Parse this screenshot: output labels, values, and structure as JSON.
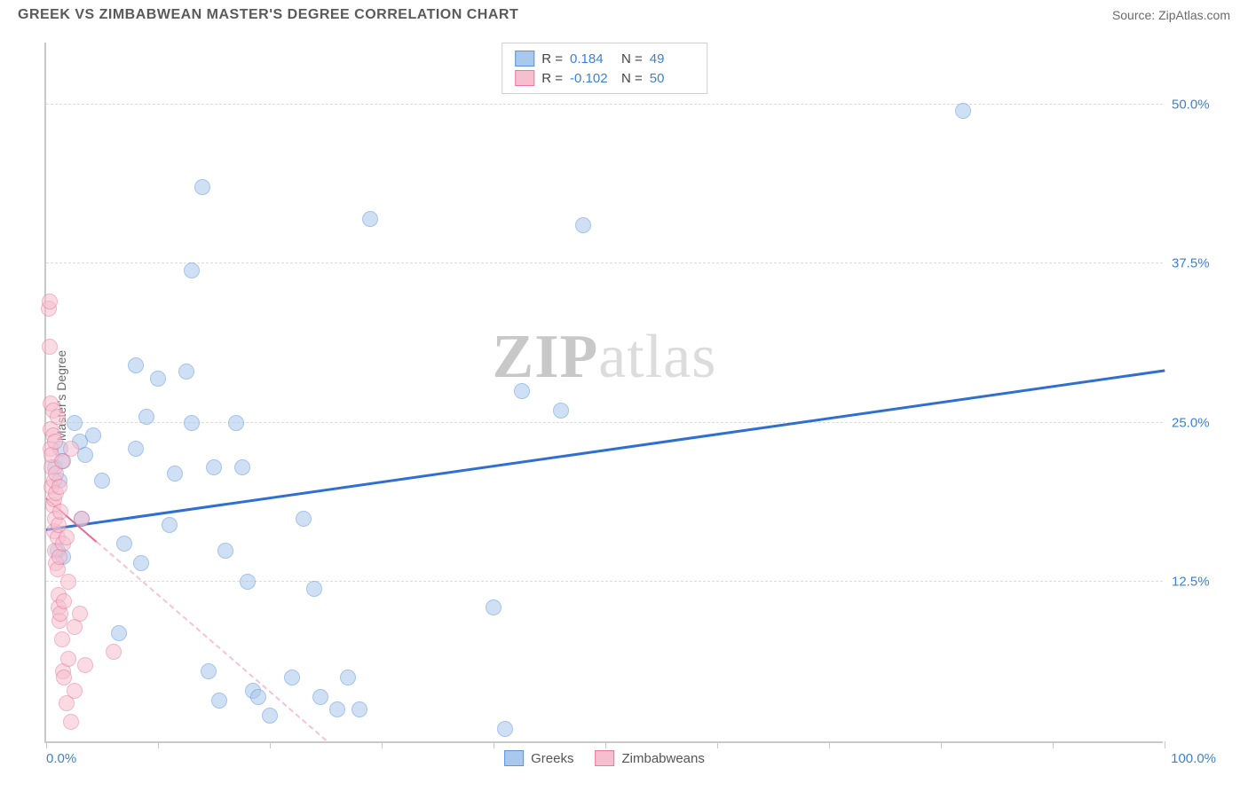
{
  "header": {
    "title": "GREEK VS ZIMBABWEAN MASTER'S DEGREE CORRELATION CHART",
    "source_label": "Source: ZipAtlas.com"
  },
  "watermark": {
    "bold": "ZIP",
    "light": "atlas"
  },
  "chart": {
    "type": "scatter",
    "background_color": "#ffffff",
    "grid_color": "#dcdcdc",
    "axis_color": "#c9c9c9",
    "tick_label_color": "#3b82d6",
    "tick_fontsize": 15,
    "yaxis_label": "Master's Degree",
    "yaxis_label_color": "#6a6a6a",
    "yaxis_label_fontsize": 14,
    "xlim": [
      0,
      100
    ],
    "ylim": [
      0,
      55
    ],
    "xticks": [
      0,
      10,
      20,
      30,
      40,
      50,
      60,
      70,
      80,
      90,
      100
    ],
    "xlabel_min": "0.0%",
    "xlabel_max": "100.0%",
    "yticks": [
      {
        "v": 12.5,
        "label": "12.5%"
      },
      {
        "v": 25.0,
        "label": "25.0%"
      },
      {
        "v": 37.5,
        "label": "37.5%"
      },
      {
        "v": 50.0,
        "label": "50.0%"
      }
    ],
    "marker_radius": 9,
    "marker_opacity": 0.55,
    "marker_border_width": 1,
    "series": [
      {
        "name": "Greeks",
        "color_fill": "#a8c8ee",
        "color_border": "#5c94d6",
        "trend": {
          "x1": 0,
          "y1": 16.5,
          "x2": 100,
          "y2": 29.0,
          "color": "#2f6fd0",
          "width": 3,
          "dashed": false
        },
        "stats": {
          "R": "0.184",
          "N": "49"
        },
        "points": [
          [
            0.8,
            21.5
          ],
          [
            1.0,
            15.0
          ],
          [
            1.2,
            20.5
          ],
          [
            1.3,
            23.0
          ],
          [
            1.5,
            22.0
          ],
          [
            1.5,
            14.5
          ],
          [
            2.5,
            25.0
          ],
          [
            3.0,
            23.5
          ],
          [
            3.2,
            17.5
          ],
          [
            3.5,
            22.5
          ],
          [
            4.2,
            24.0
          ],
          [
            5.0,
            20.5
          ],
          [
            6.5,
            8.5
          ],
          [
            7.0,
            15.5
          ],
          [
            8.0,
            29.5
          ],
          [
            8.0,
            23.0
          ],
          [
            8.5,
            14.0
          ],
          [
            9.0,
            25.5
          ],
          [
            10.0,
            28.5
          ],
          [
            11.0,
            17.0
          ],
          [
            11.5,
            21.0
          ],
          [
            12.5,
            29.0
          ],
          [
            13.0,
            25.0
          ],
          [
            13.0,
            37.0
          ],
          [
            14.0,
            43.5
          ],
          [
            14.5,
            5.5
          ],
          [
            15.0,
            21.5
          ],
          [
            15.5,
            3.2
          ],
          [
            16.0,
            15.0
          ],
          [
            17.0,
            25.0
          ],
          [
            17.5,
            21.5
          ],
          [
            18.0,
            12.5
          ],
          [
            18.5,
            4.0
          ],
          [
            19.0,
            3.5
          ],
          [
            20.0,
            2.0
          ],
          [
            22.0,
            5.0
          ],
          [
            23.0,
            17.5
          ],
          [
            24.0,
            12.0
          ],
          [
            24.5,
            3.5
          ],
          [
            26.0,
            2.5
          ],
          [
            27.0,
            5.0
          ],
          [
            28.0,
            2.5
          ],
          [
            29.0,
            41.0
          ],
          [
            40.0,
            10.5
          ],
          [
            41.0,
            1.0
          ],
          [
            42.5,
            27.5
          ],
          [
            46.0,
            26.0
          ],
          [
            48.0,
            40.5
          ],
          [
            82.0,
            49.5
          ]
        ]
      },
      {
        "name": "Zimbabweans",
        "color_fill": "#f6bfcf",
        "color_border": "#e77a9b",
        "trend": {
          "x1": 0,
          "y1": 19.0,
          "x2": 25,
          "y2": 0,
          "color": "#e86a91",
          "width": 2,
          "dashed": true,
          "solid_until_x": 4.5
        },
        "stats": {
          "R": "-0.102",
          "N": "50"
        },
        "points": [
          [
            0.2,
            34.0
          ],
          [
            0.3,
            34.5
          ],
          [
            0.3,
            31.0
          ],
          [
            0.4,
            26.5
          ],
          [
            0.4,
            24.5
          ],
          [
            0.4,
            23.0
          ],
          [
            0.5,
            21.5
          ],
          [
            0.5,
            20.0
          ],
          [
            0.5,
            22.5
          ],
          [
            0.6,
            24.0
          ],
          [
            0.6,
            18.5
          ],
          [
            0.6,
            26.0
          ],
          [
            0.7,
            20.5
          ],
          [
            0.7,
            16.5
          ],
          [
            0.7,
            19.0
          ],
          [
            0.8,
            17.5
          ],
          [
            0.8,
            15.0
          ],
          [
            0.8,
            23.5
          ],
          [
            0.9,
            14.0
          ],
          [
            0.9,
            19.5
          ],
          [
            0.9,
            21.0
          ],
          [
            1.0,
            13.5
          ],
          [
            1.0,
            16.0
          ],
          [
            1.0,
            25.5
          ],
          [
            1.1,
            11.5
          ],
          [
            1.1,
            10.5
          ],
          [
            1.1,
            17.0
          ],
          [
            1.2,
            14.5
          ],
          [
            1.2,
            9.5
          ],
          [
            1.2,
            20.0
          ],
          [
            1.3,
            18.0
          ],
          [
            1.3,
            10.0
          ],
          [
            1.4,
            22.0
          ],
          [
            1.4,
            8.0
          ],
          [
            1.5,
            15.5
          ],
          [
            1.5,
            5.5
          ],
          [
            1.6,
            5.0
          ],
          [
            1.6,
            11.0
          ],
          [
            1.8,
            16.0
          ],
          [
            1.8,
            3.0
          ],
          [
            2.0,
            6.5
          ],
          [
            2.0,
            12.5
          ],
          [
            2.2,
            23.0
          ],
          [
            2.2,
            1.5
          ],
          [
            2.5,
            9.0
          ],
          [
            2.5,
            4.0
          ],
          [
            3.0,
            10.0
          ],
          [
            3.2,
            17.5
          ],
          [
            3.5,
            6.0
          ],
          [
            6.0,
            7.0
          ]
        ]
      }
    ],
    "stats_legend": {
      "border_color": "#cfcfcf",
      "text_color": "#444444",
      "value_color": "#3b82d6"
    },
    "bottom_legend": {
      "items": [
        {
          "label": "Greeks",
          "swatch_fill": "#a8c8ee",
          "swatch_border": "#5c94d6"
        },
        {
          "label": "Zimbabweans",
          "swatch_fill": "#f6bfcf",
          "swatch_border": "#e77a9b"
        }
      ]
    }
  }
}
